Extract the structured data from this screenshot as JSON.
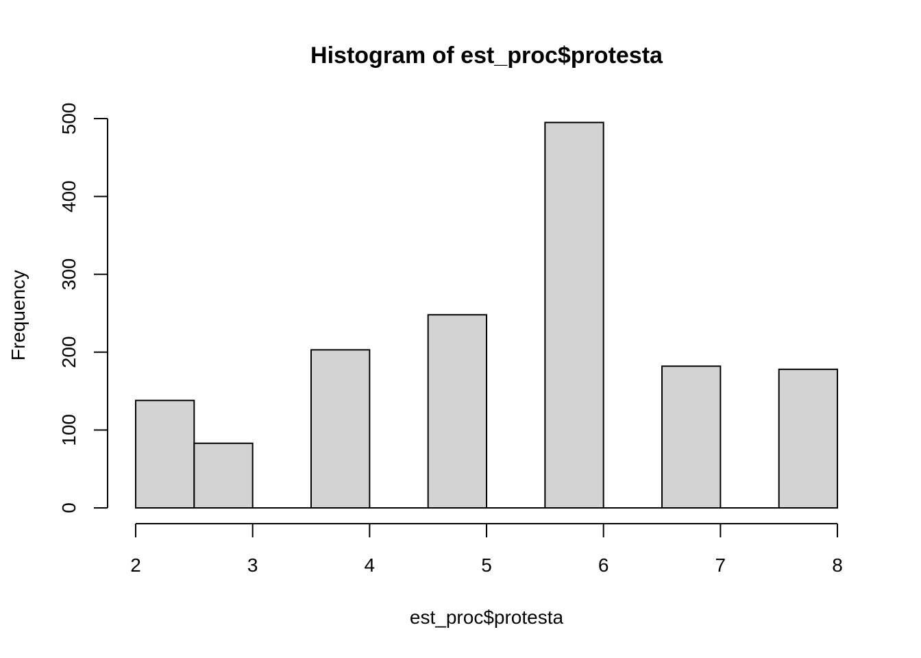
{
  "chart_data": {
    "type": "bar",
    "title": "Histogram of est_proc$protesta",
    "xlabel": "est_proc$protesta",
    "ylabel": "Frequency",
    "bins": [
      {
        "x0": 2.0,
        "x1": 2.5,
        "count": 138
      },
      {
        "x0": 2.5,
        "x1": 3.0,
        "count": 83
      },
      {
        "x0": 3.0,
        "x1": 3.5,
        "count": 0
      },
      {
        "x0": 3.5,
        "x1": 4.0,
        "count": 203
      },
      {
        "x0": 4.0,
        "x1": 4.5,
        "count": 0
      },
      {
        "x0": 4.5,
        "x1": 5.0,
        "count": 248
      },
      {
        "x0": 5.0,
        "x1": 5.5,
        "count": 0
      },
      {
        "x0": 5.5,
        "x1": 6.0,
        "count": 495
      },
      {
        "x0": 6.0,
        "x1": 6.5,
        "count": 0
      },
      {
        "x0": 6.5,
        "x1": 7.0,
        "count": 182
      },
      {
        "x0": 7.0,
        "x1": 7.5,
        "count": 0
      },
      {
        "x0": 7.5,
        "x1": 8.0,
        "count": 178
      }
    ],
    "xlim": [
      2,
      8
    ],
    "ylim": [
      0,
      500
    ],
    "x_ticks": [
      "2",
      "3",
      "4",
      "5",
      "6",
      "7",
      "8"
    ],
    "y_ticks": [
      "0",
      "100",
      "200",
      "300",
      "400",
      "500"
    ],
    "bar_fill": "#d3d3d3",
    "bar_stroke": "#000000",
    "grid": false,
    "legend": "none"
  }
}
